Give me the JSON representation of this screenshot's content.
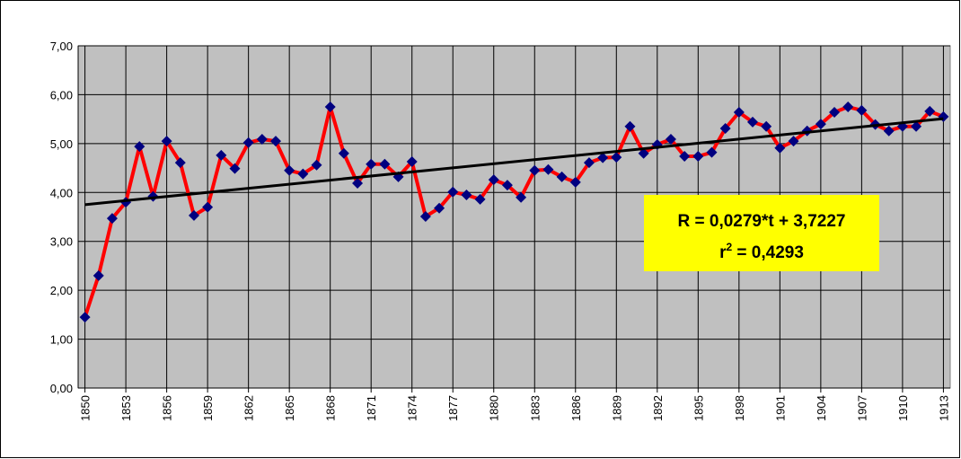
{
  "chart_data": {
    "type": "line",
    "x": [
      1850,
      1851,
      1852,
      1853,
      1854,
      1855,
      1856,
      1857,
      1858,
      1859,
      1860,
      1861,
      1862,
      1863,
      1864,
      1865,
      1866,
      1867,
      1868,
      1869,
      1870,
      1871,
      1872,
      1873,
      1874,
      1875,
      1876,
      1877,
      1878,
      1879,
      1880,
      1881,
      1882,
      1883,
      1884,
      1885,
      1886,
      1887,
      1888,
      1889,
      1890,
      1891,
      1892,
      1893,
      1894,
      1895,
      1896,
      1897,
      1898,
      1899,
      1900,
      1901,
      1902,
      1903,
      1904,
      1905,
      1906,
      1907,
      1908,
      1909,
      1910,
      1911,
      1912,
      1913
    ],
    "series": [
      {
        "color": "#ff0000",
        "marker_color": "#000080",
        "values": [
          1.45,
          2.3,
          3.47,
          3.8,
          4.94,
          3.92,
          5.05,
          4.61,
          3.53,
          3.7,
          4.76,
          4.49,
          5.02,
          5.09,
          5.05,
          4.45,
          4.38,
          4.56,
          5.75,
          4.8,
          4.19,
          4.58,
          4.58,
          4.32,
          4.63,
          3.51,
          3.68,
          4.01,
          3.95,
          3.86,
          4.26,
          4.15,
          3.9,
          4.45,
          4.47,
          4.32,
          4.21,
          4.61,
          4.71,
          4.72,
          5.35,
          4.8,
          4.98,
          5.09,
          4.74,
          4.74,
          4.82,
          5.31,
          5.64,
          5.44,
          5.35,
          4.91,
          5.05,
          5.26,
          5.4,
          5.64,
          5.75,
          5.68,
          5.39,
          5.26,
          5.35,
          5.35,
          5.66,
          5.55
        ]
      }
    ],
    "trendline": {
      "color": "#000000",
      "x": [
        1850,
        1913
      ],
      "values": [
        3.75,
        5.51
      ]
    },
    "xlim": [
      1849.5,
      1913.5
    ],
    "xticks": [
      1850,
      1853,
      1856,
      1859,
      1862,
      1865,
      1868,
      1871,
      1874,
      1877,
      1880,
      1883,
      1886,
      1889,
      1892,
      1895,
      1898,
      1901,
      1904,
      1907,
      1910,
      1913
    ],
    "ylim": [
      0,
      7
    ],
    "yticks": [
      {
        "value": 0,
        "label": "0,00"
      },
      {
        "value": 1,
        "label": "1,00"
      },
      {
        "value": 2,
        "label": "2,00"
      },
      {
        "value": 3,
        "label": "3,00"
      },
      {
        "value": 4,
        "label": "4,00"
      },
      {
        "value": 5,
        "label": "5,00"
      },
      {
        "value": 6,
        "label": "6,00"
      },
      {
        "value": 7,
        "label": "7,00"
      }
    ],
    "grid": true,
    "annotation": {
      "line1": "R = 0,0279*t + 3,7227",
      "line2": {
        "base": "r",
        "sup": "2",
        "rest": " = 0,4293"
      },
      "background": "#ffff00"
    }
  }
}
